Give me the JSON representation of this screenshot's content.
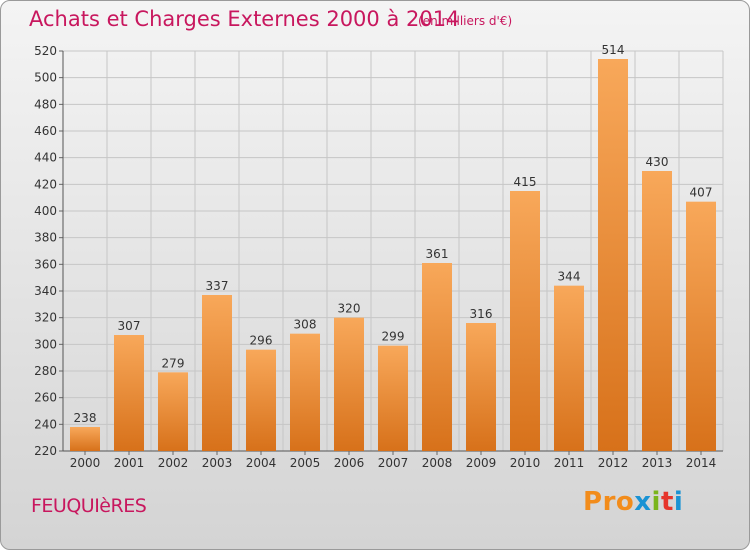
{
  "header": {
    "title": "Achats et Charges Externes 2000 à 2014",
    "subtitle": "(en milliers d'€)"
  },
  "footer": {
    "commune": "FEUQUIèRES",
    "logo_text": "Proxiti",
    "logo_colors": [
      "#f28c1b",
      "#f28c1b",
      "#f28c1b",
      "#1a93d4",
      "#7ab51d",
      "#e6352b",
      "#1a93d4"
    ]
  },
  "colors": {
    "bar_light": "#f8a85a",
    "bar_dark": "#d7711a",
    "text_accent": "#c8175e",
    "grid": "#c6c6c6"
  },
  "chart_data": {
    "type": "bar",
    "title": "Achats et Charges Externes 2000 à 2014",
    "subtitle": "(en milliers d'€)",
    "categories": [
      "2000",
      "2001",
      "2002",
      "2003",
      "2004",
      "2005",
      "2006",
      "2007",
      "2008",
      "2009",
      "2010",
      "2011",
      "2012",
      "2013",
      "2014"
    ],
    "values": [
      238,
      307,
      279,
      337,
      296,
      308,
      320,
      299,
      361,
      316,
      415,
      344,
      514,
      430,
      407
    ],
    "ylim": [
      220,
      520
    ],
    "yticks": [
      220,
      240,
      260,
      280,
      300,
      320,
      340,
      360,
      380,
      400,
      420,
      440,
      460,
      480,
      500,
      520
    ],
    "grid": true,
    "data_labels": true
  }
}
